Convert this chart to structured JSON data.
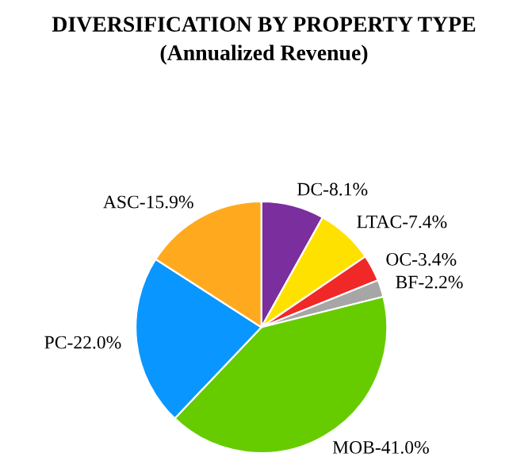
{
  "chart_data": {
    "type": "pie",
    "title": "DIVERSIFICATION BY PROPERTY TYPE",
    "subtitle": "(Annualized Revenue)",
    "categories": [
      "DC-8.1%",
      "LTAC-7.4%",
      "OC-3.4%",
      "BF-2.2%",
      "MOB-41.0%",
      "PC-22.0%",
      "ASC-15.9%"
    ],
    "values": [
      8.1,
      7.4,
      3.4,
      2.2,
      41.0,
      22.0,
      15.9
    ],
    "colors": [
      "#7b2e9e",
      "#ffe100",
      "#f02828",
      "#a6a6a6",
      "#66cc00",
      "#0a96ff",
      "#ffaa1e"
    ],
    "legend": false
  }
}
